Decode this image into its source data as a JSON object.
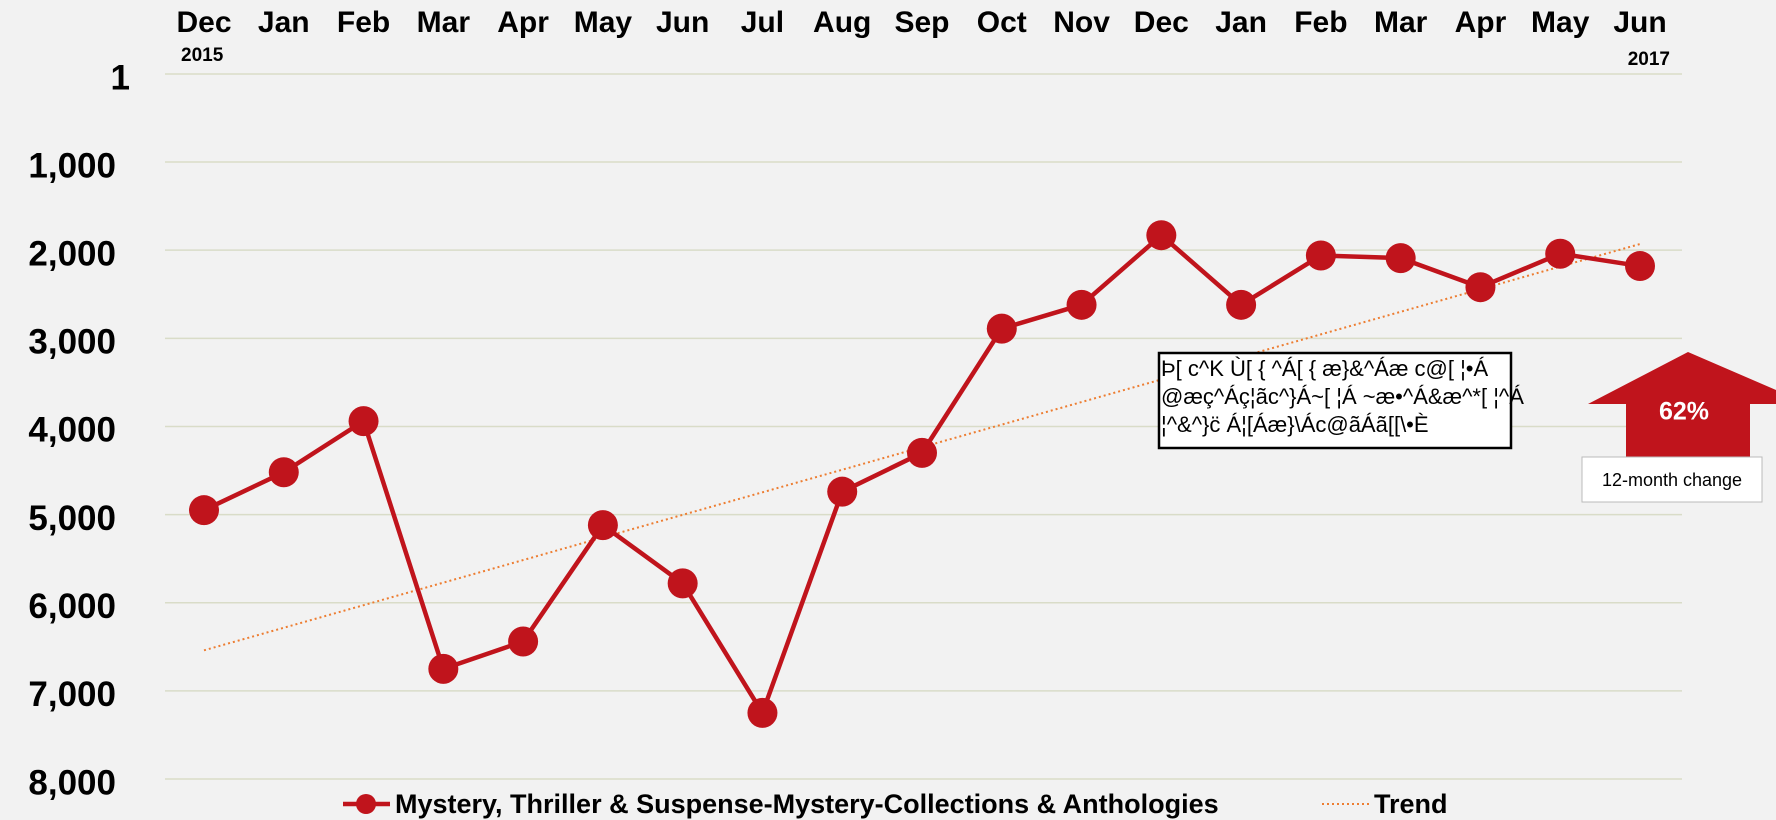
{
  "chart_data": {
    "type": "line",
    "categories": [
      "Dec",
      "Jan",
      "Feb",
      "Mar",
      "Apr",
      "May",
      "Jun",
      "Jul",
      "Aug",
      "Sep",
      "Oct",
      "Nov",
      "Dec",
      "Jan",
      "Feb",
      "Mar",
      "Apr",
      "May",
      "Jun"
    ],
    "x_years": [
      "2015",
      "2017"
    ],
    "series": [
      {
        "name": "Mystery, Thriller & Suspense-Mystery-Collections & Anthologies",
        "color": "#c0141c",
        "marker": true,
        "values": [
          4950,
          4520,
          3940,
          6750,
          6440,
          5120,
          5780,
          7250,
          4740,
          4300,
          2890,
          2620,
          1830,
          2620,
          2060,
          2090,
          2420,
          2040,
          2180
        ]
      },
      {
        "name": "Trend",
        "color": "#ed7d31",
        "dotted": true,
        "values": [
          6540,
          6284,
          6028,
          5772,
          5516,
          5259,
          5003,
          4747,
          4491,
          4235,
          3979,
          3723,
          3467,
          3211,
          2955,
          2699,
          2443,
          2186,
          1930
        ]
      }
    ],
    "ylim": [
      1,
      8000
    ],
    "y_inverted": true,
    "yticks": [
      1,
      {
        "value": 1000,
        "label": "1,000"
      },
      {
        "value": 2000,
        "label": "2,000"
      },
      {
        "value": 3000,
        "label": "3,000"
      },
      {
        "value": 4000,
        "label": "4,000"
      },
      {
        "value": 5000,
        "label": "5,000"
      },
      {
        "value": 6000,
        "label": "6,000"
      },
      {
        "value": 7000,
        "label": "7,000"
      },
      {
        "value": 8000,
        "label": "8,000"
      }
    ],
    "grid": true,
    "legend": "bottom",
    "note": [
      "Þ[ c^K Ù[ { ^Á[ { æ}&^Áæ c@[ ¦•Á",
      "@æç^Áç¦ãc^}Á~[ ¦Á ~æ•^Á&æ^*[ ¦^Á",
      "¦^&^}c̈ Á¦[Áæ}\\Ác@ãÁã[[\\•È"
    ],
    "change": "62%",
    "change_label": "12-month change"
  }
}
